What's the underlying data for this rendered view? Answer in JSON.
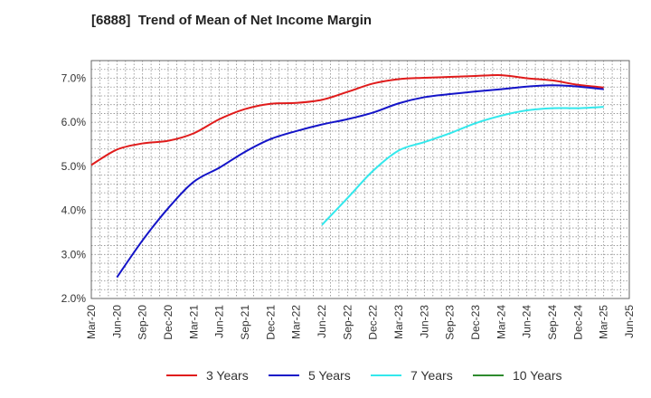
{
  "chart_data": {
    "type": "line",
    "title": "[6888]  Trend of Mean of Net Income Margin",
    "xlabel": "",
    "ylabel": "",
    "x_ticks": [
      "Mar-20",
      "Jun-20",
      "Sep-20",
      "Dec-20",
      "Mar-21",
      "Jun-21",
      "Sep-21",
      "Dec-21",
      "Mar-22",
      "Jun-22",
      "Sep-22",
      "Dec-22",
      "Mar-23",
      "Jun-23",
      "Sep-23",
      "Dec-23",
      "Mar-24",
      "Jun-24",
      "Sep-24",
      "Dec-24",
      "Mar-25",
      "Jun-25"
    ],
    "y_ticks": [
      "2.0%",
      "3.0%",
      "4.0%",
      "5.0%",
      "6.0%",
      "7.0%"
    ],
    "ylim": [
      2.0,
      7.4
    ],
    "grid": true,
    "legend_position": "bottom",
    "series": [
      {
        "name": "3 Years",
        "color": "#e01b1b",
        "x": [
          "Mar-20",
          "Jun-20",
          "Sep-20",
          "Dec-20",
          "Mar-21",
          "Jun-21",
          "Sep-21",
          "Dec-21",
          "Mar-22",
          "Jun-22",
          "Sep-22",
          "Dec-22",
          "Mar-23",
          "Jun-23",
          "Sep-23",
          "Dec-23",
          "Mar-24",
          "Jun-24",
          "Sep-24",
          "Dec-24",
          "Mar-25"
        ],
        "values": [
          5.03,
          5.38,
          5.52,
          5.58,
          5.75,
          6.07,
          6.3,
          6.42,
          6.44,
          6.51,
          6.69,
          6.88,
          6.98,
          7.01,
          7.03,
          7.05,
          7.07,
          7.0,
          6.95,
          6.85,
          6.79
        ]
      },
      {
        "name": "5 Years",
        "color": "#1414c8",
        "x": [
          "Jun-20",
          "Sep-20",
          "Dec-20",
          "Mar-21",
          "Jun-21",
          "Sep-21",
          "Dec-21",
          "Mar-22",
          "Jun-22",
          "Sep-22",
          "Dec-22",
          "Mar-23",
          "Jun-23",
          "Sep-23",
          "Dec-23",
          "Mar-24",
          "Jun-24",
          "Sep-24",
          "Dec-24",
          "Mar-25"
        ],
        "values": [
          2.48,
          3.32,
          4.05,
          4.65,
          4.97,
          5.33,
          5.62,
          5.8,
          5.95,
          6.07,
          6.22,
          6.43,
          6.57,
          6.64,
          6.7,
          6.75,
          6.81,
          6.84,
          6.81,
          6.75
        ]
      },
      {
        "name": "7 Years",
        "color": "#33e8ec",
        "x": [
          "Jun-22",
          "Sep-22",
          "Dec-22",
          "Mar-23",
          "Jun-23",
          "Sep-23",
          "Dec-23",
          "Mar-24",
          "Jun-24",
          "Sep-24",
          "Dec-24",
          "Mar-25"
        ],
        "values": [
          3.67,
          4.28,
          4.9,
          5.36,
          5.55,
          5.75,
          5.98,
          6.15,
          6.27,
          6.32,
          6.32,
          6.35
        ]
      },
      {
        "name": "10 Years",
        "color": "#2e8b2e",
        "x": [],
        "values": []
      }
    ]
  }
}
